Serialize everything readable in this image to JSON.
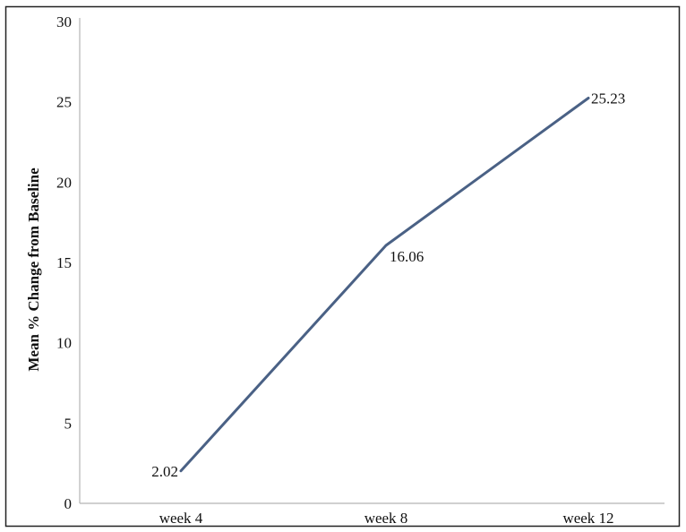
{
  "chart_data": {
    "type": "line",
    "title": "",
    "xlabel": "",
    "ylabel": "Mean % Change from Baseline",
    "categories": [
      "week 4",
      "week 8",
      "week 12"
    ],
    "series": [
      {
        "values": [
          2.02,
          16.06,
          25.23
        ],
        "labels": [
          "2.02",
          "16.06",
          "25.23"
        ],
        "color": "#4a6185"
      }
    ],
    "ylim": [
      0,
      30
    ],
    "yticks": [
      "0",
      "5",
      "10",
      "15",
      "20",
      "25",
      "30"
    ],
    "grid": false,
    "legend": "none"
  }
}
